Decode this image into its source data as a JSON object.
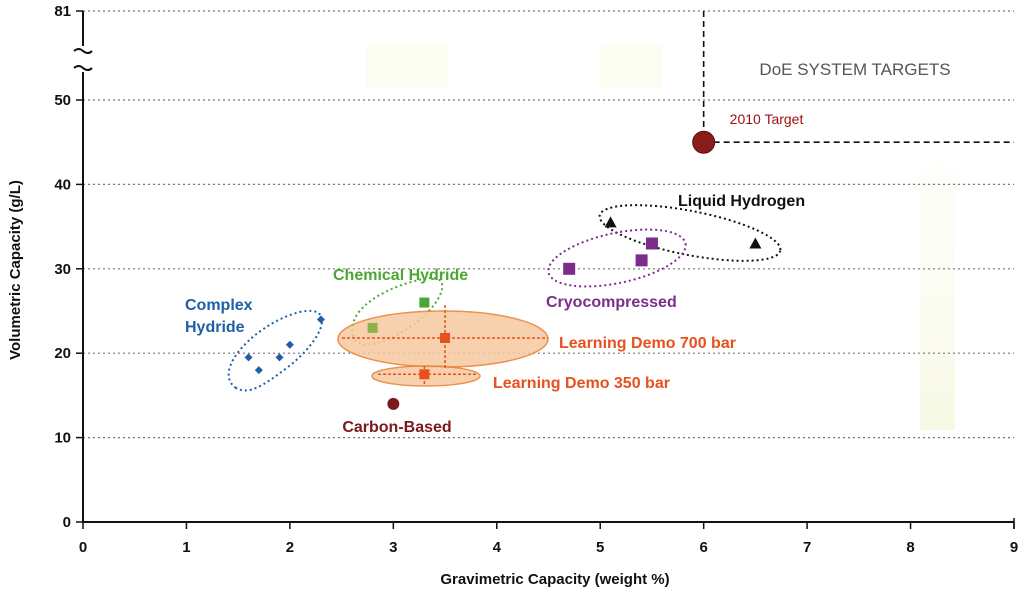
{
  "chart_data": {
    "type": "scatter",
    "title": "",
    "xlabel": "Gravimetric Capacity (weight %)",
    "ylabel": "Volumetric Capacity (g/L)",
    "xlim": [
      0,
      9
    ],
    "ylim": [
      0,
      81
    ],
    "axis_break": {
      "from": 50,
      "to": 81
    },
    "xticks": [
      0,
      1,
      2,
      3,
      4,
      5,
      6,
      7,
      8,
      9
    ],
    "yticks": [
      0,
      10,
      20,
      30,
      40,
      50,
      81
    ],
    "grid": true,
    "targets_box_label": "DoE SYSTEM TARGETS",
    "target": {
      "name": "2010 Target",
      "x": 6,
      "y": 45,
      "color": "#8b1a1a"
    },
    "series": [
      {
        "name": "Complex Hydride",
        "label_lines": [
          "Complex",
          "Hydride"
        ],
        "color": "#1f5fa8",
        "marker": "diamond",
        "points": [
          [
            1.6,
            19.5
          ],
          [
            1.7,
            18
          ],
          [
            1.9,
            19.5
          ],
          [
            2.0,
            21
          ],
          [
            2.3,
            24
          ]
        ]
      },
      {
        "name": "Chemical Hydride",
        "label_lines": [
          "Chemical Hydride"
        ],
        "color": "#4aa832",
        "marker": "square",
        "points": [
          [
            2.8,
            23
          ],
          [
            3.3,
            26
          ]
        ]
      },
      {
        "name": "Learning Demo 700 bar",
        "label_lines": [
          "Learning Demo 700 bar"
        ],
        "color": "#e8501e",
        "marker": "square",
        "points": [
          [
            3.5,
            21.8
          ]
        ]
      },
      {
        "name": "Learning Demo 350 bar",
        "label_lines": [
          "Learning Demo 350 bar"
        ],
        "color": "#e8501e",
        "marker": "square",
        "points": [
          [
            3.3,
            17.5
          ]
        ]
      },
      {
        "name": "Carbon-Based",
        "label_lines": [
          "Carbon-Based"
        ],
        "color": "#7a1a1a",
        "marker": "circle",
        "points": [
          [
            3.0,
            14
          ]
        ]
      },
      {
        "name": "Cryocompressed",
        "label_lines": [
          "Cryocompressed"
        ],
        "color": "#7b2d8b",
        "marker": "square",
        "points": [
          [
            4.7,
            30
          ],
          [
            5.4,
            31
          ],
          [
            5.5,
            33
          ]
        ]
      },
      {
        "name": "Liquid Hydrogen",
        "label_lines": [
          "Liquid Hydrogen"
        ],
        "color": "#111111",
        "marker": "triangle",
        "points": [
          [
            5.1,
            35.5
          ],
          [
            6.5,
            33
          ]
        ]
      }
    ]
  }
}
